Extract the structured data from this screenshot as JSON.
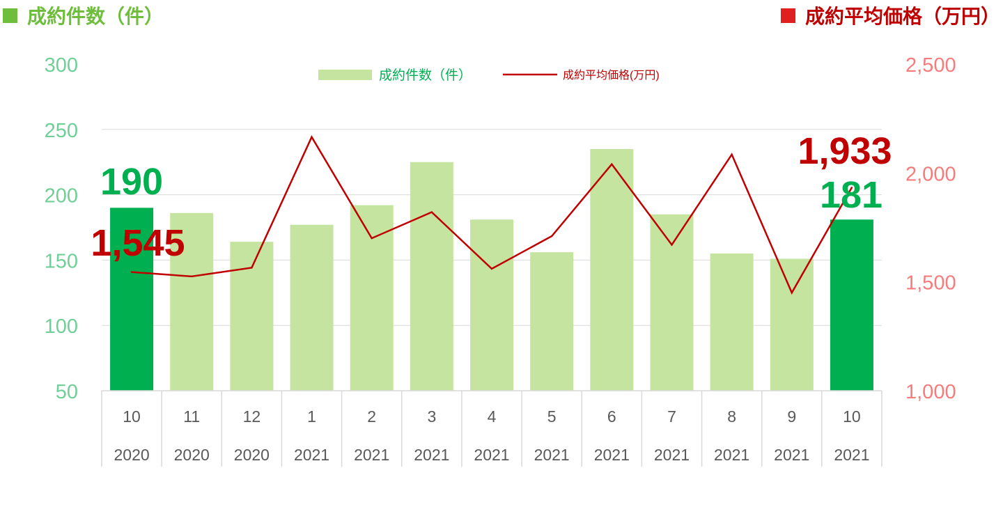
{
  "titles": {
    "left": "成約件数（件）",
    "right": "成約平均価格（万円）"
  },
  "colors": {
    "bar_normal": "#c5e4a0",
    "bar_highlight": "#00b050",
    "line": "#c00000",
    "left_axis": "#6fcf97",
    "right_axis": "#f47c7c",
    "callout_count": "#00b050",
    "callout_price": "#c00000",
    "grid": "#d9d9d9",
    "tick_text": "#595959"
  },
  "chart_data": {
    "type": "bar",
    "categories": [
      "10",
      "11",
      "12",
      "1",
      "2",
      "3",
      "4",
      "5",
      "6",
      "7",
      "8",
      "9",
      "10"
    ],
    "category_years": [
      "2020",
      "2020",
      "2020",
      "2021",
      "2021",
      "2021",
      "2021",
      "2021",
      "2021",
      "2021",
      "2021",
      "2021",
      "2021"
    ],
    "series": [
      {
        "name": "成約件数（件）",
        "type": "bar",
        "axis": "left",
        "values": [
          190,
          186,
          164,
          177,
          192,
          225,
          181,
          156,
          235,
          185,
          155,
          151,
          181
        ],
        "highlight_indices": [
          0,
          12
        ]
      },
      {
        "name": "成約平均価格(万円)",
        "type": "line",
        "axis": "right",
        "values": [
          1545,
          1525,
          1565,
          2165,
          1700,
          1820,
          1560,
          1710,
          2040,
          1670,
          2085,
          1450,
          1933
        ]
      }
    ],
    "left_axis": {
      "ylim": [
        50,
        300
      ],
      "ticks": [
        "50",
        "100",
        "150",
        "200",
        "250",
        "300"
      ]
    },
    "right_axis": {
      "ylim": [
        1000,
        2500
      ],
      "ticks": [
        "1,000",
        "1,500",
        "2,000",
        "2,500"
      ]
    },
    "callouts": {
      "first_count": "190",
      "first_price": "1,545",
      "last_count": "181",
      "last_price": "1,933"
    },
    "legend_position": "top-center",
    "grid": true
  }
}
